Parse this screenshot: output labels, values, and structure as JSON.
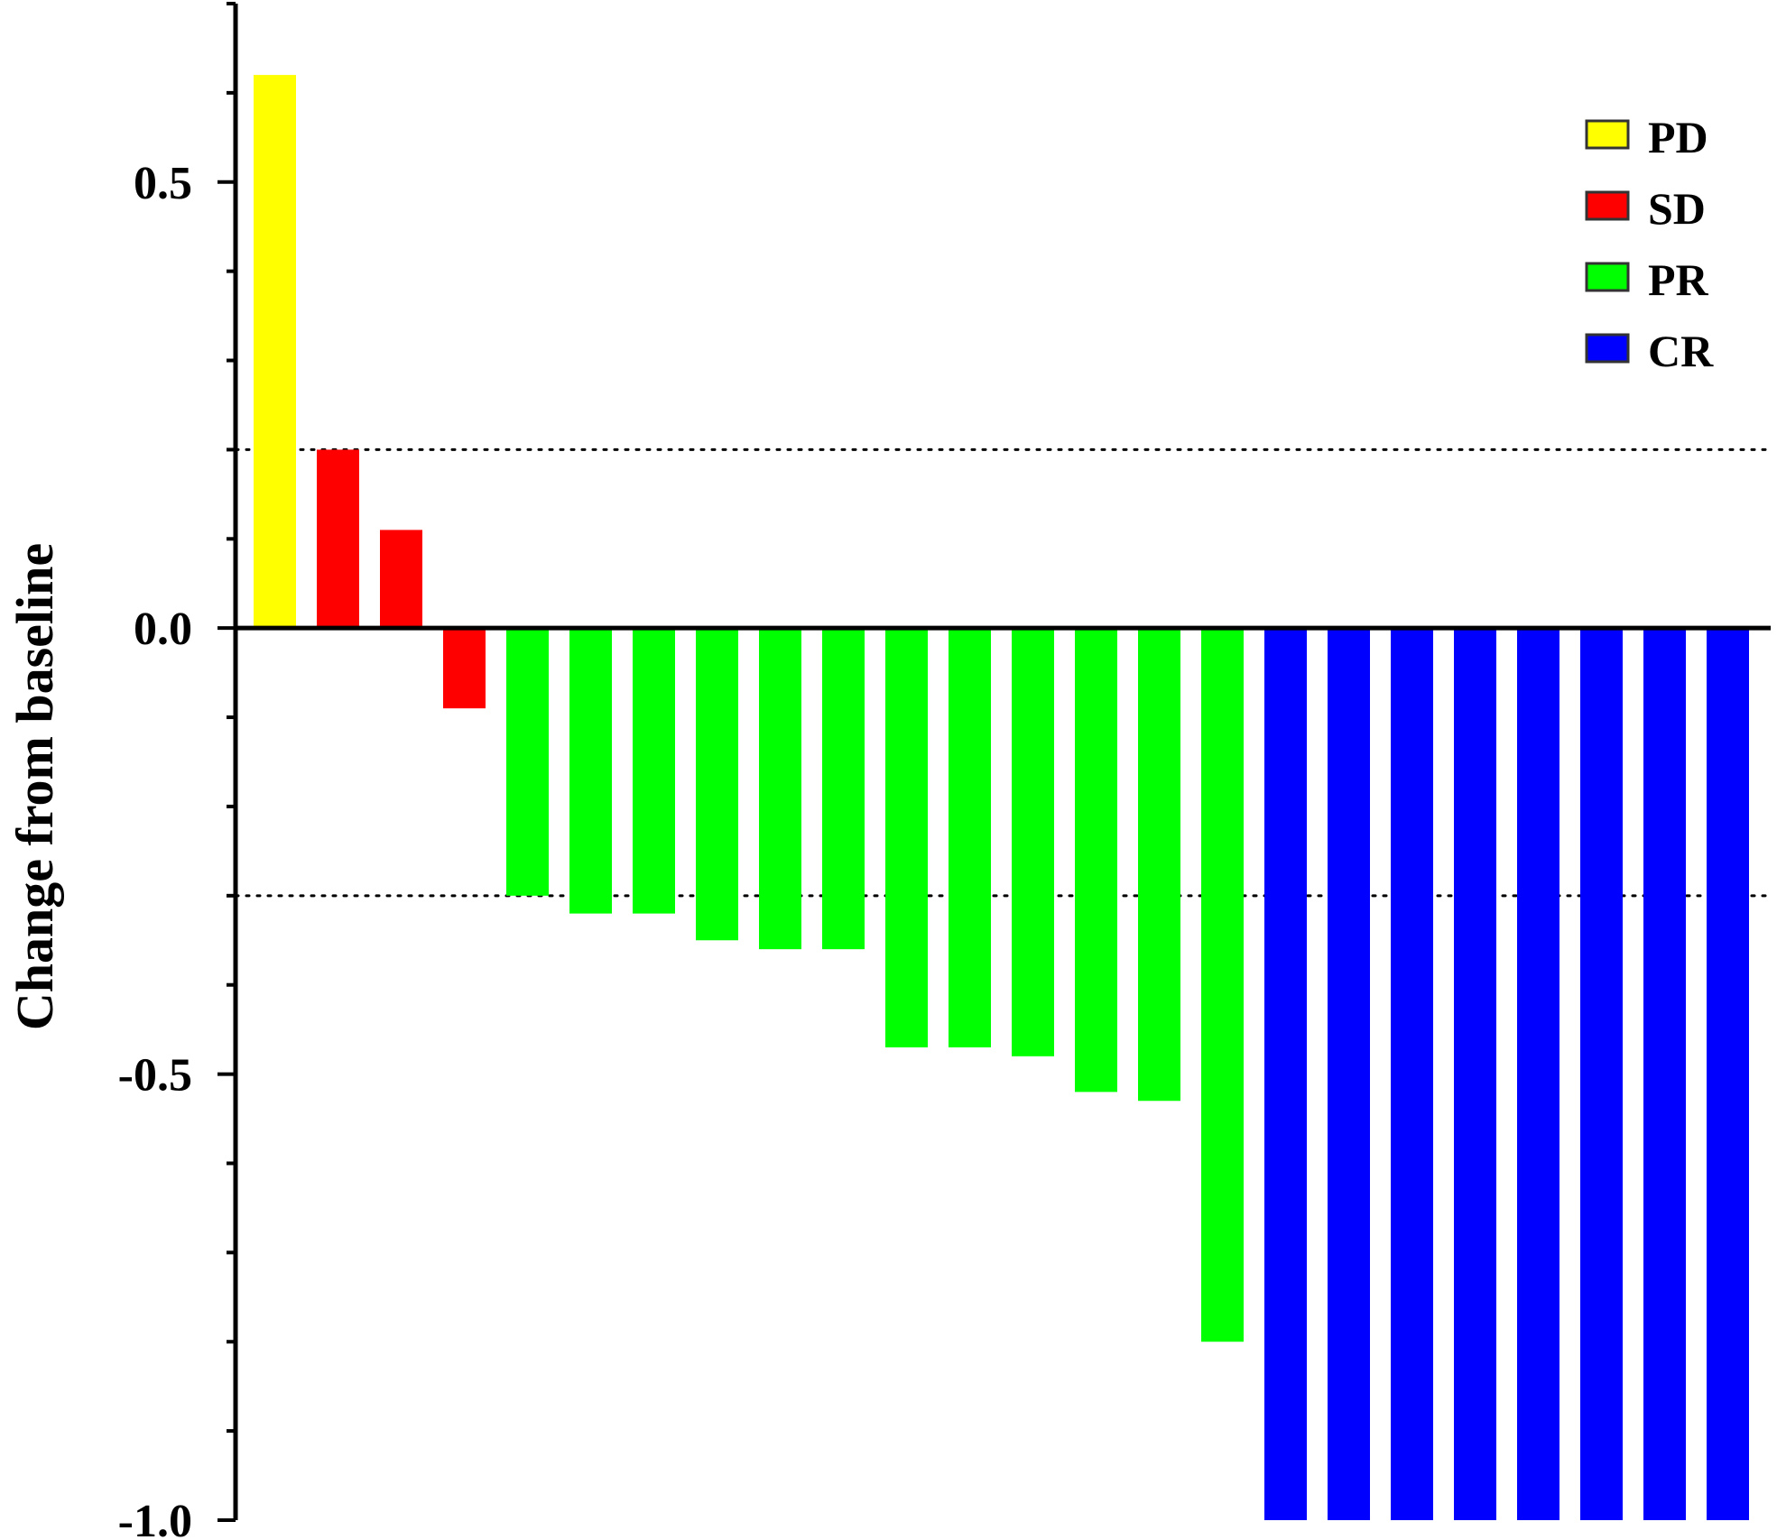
{
  "chart_data": {
    "type": "bar",
    "title": "",
    "xlabel": "",
    "ylabel": "Change from baseline",
    "ylim": [
      -1.0,
      0.7
    ],
    "yticks": [
      {
        "value": 0.5,
        "label": "0.5"
      },
      {
        "value": 0.0,
        "label": "0.0"
      },
      {
        "value": -0.5,
        "label": "-0.5"
      },
      {
        "value": -1.0,
        "label": "-1.0"
      }
    ],
    "reference_lines": [
      0.2,
      -0.3
    ],
    "grid": false,
    "legend_position": "top-right",
    "legend": [
      {
        "label": "PD",
        "color": "#ffff00"
      },
      {
        "label": "SD",
        "color": "#ff0000"
      },
      {
        "label": "PR",
        "color": "#00ff00"
      },
      {
        "label": "CR",
        "color": "#0000ff"
      }
    ],
    "bars": [
      {
        "value": 0.62,
        "response": "PD"
      },
      {
        "value": 0.2,
        "response": "SD"
      },
      {
        "value": 0.11,
        "response": "SD"
      },
      {
        "value": -0.09,
        "response": "SD"
      },
      {
        "value": -0.3,
        "response": "PR"
      },
      {
        "value": -0.32,
        "response": "PR"
      },
      {
        "value": -0.32,
        "response": "PR"
      },
      {
        "value": -0.35,
        "response": "PR"
      },
      {
        "value": -0.36,
        "response": "PR"
      },
      {
        "value": -0.36,
        "response": "PR"
      },
      {
        "value": -0.47,
        "response": "PR"
      },
      {
        "value": -0.47,
        "response": "PR"
      },
      {
        "value": -0.48,
        "response": "PR"
      },
      {
        "value": -0.52,
        "response": "PR"
      },
      {
        "value": -0.53,
        "response": "PR"
      },
      {
        "value": -0.8,
        "response": "PR"
      },
      {
        "value": -1.0,
        "response": "CR"
      },
      {
        "value": -1.0,
        "response": "CR"
      },
      {
        "value": -1.0,
        "response": "CR"
      },
      {
        "value": -1.0,
        "response": "CR"
      },
      {
        "value": -1.0,
        "response": "CR"
      },
      {
        "value": -1.0,
        "response": "CR"
      },
      {
        "value": -1.0,
        "response": "CR"
      },
      {
        "value": -1.0,
        "response": "CR"
      }
    ]
  }
}
